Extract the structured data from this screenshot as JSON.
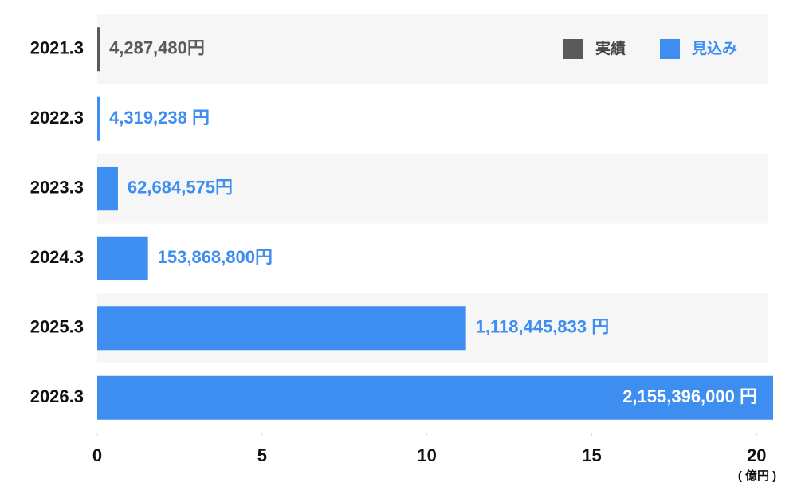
{
  "chart_data": {
    "type": "bar",
    "orientation": "horizontal",
    "categories": [
      "2021.3",
      "2022.3",
      "2023.3",
      "2024.3",
      "2025.3",
      "2026.3"
    ],
    "series": [
      {
        "name": "実績",
        "color": "#5a5a5a",
        "values": [
          0.0428748,
          null,
          null,
          null,
          null,
          null
        ],
        "value_labels": [
          "4,287,480円",
          null,
          null,
          null,
          null,
          null
        ]
      },
      {
        "name": "見込み",
        "color": "#3d8ef0",
        "values": [
          null,
          0.04319238,
          0.62684575,
          1.538688,
          11.18445833,
          21.55396
        ],
        "value_labels": [
          null,
          "4,319,238 円",
          "62,684,575円",
          "153,868,800円",
          "1,118,445,833 円",
          "2,155,396,000 円"
        ]
      }
    ],
    "x_label": "( 億円 )",
    "xlim": [
      0,
      20.5
    ],
    "xticks": [
      0,
      5,
      10,
      15,
      20
    ],
    "legend": "top-right"
  }
}
